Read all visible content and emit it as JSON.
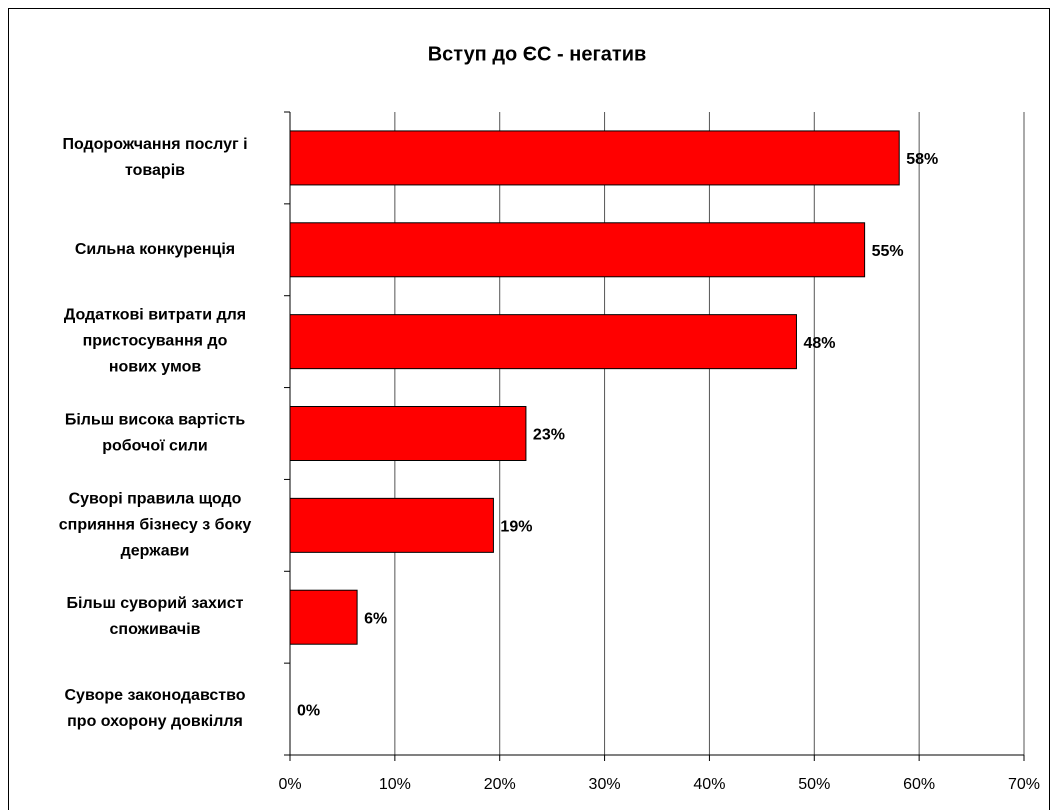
{
  "chart_data": {
    "type": "hbar",
    "title": "Вступ до ЄС - негатив",
    "categories": [
      [
        "Подорожчання послуг і",
        "товарів"
      ],
      [
        "Сильна конкуренція"
      ],
      [
        "Додаткові витрати для",
        "пристосування до",
        "нових умов"
      ],
      [
        "Більш висока вартість",
        "робочої сили"
      ],
      [
        "Суворі правила щодо",
        "сприяння бізнесу з боку",
        "держави"
      ],
      [
        "Більш суворий захист",
        "споживачів"
      ],
      [
        "Суворе законодавство",
        "про охорону довкілля"
      ]
    ],
    "values": [
      58.1,
      54.8,
      48.3,
      22.5,
      19.4,
      6.4,
      0
    ],
    "value_labels": [
      "58%",
      "55%",
      "48%",
      "23%",
      "19%",
      "6%",
      "0%"
    ],
    "color": "#ff0000",
    "xlim": [
      0,
      70
    ],
    "xticks": [
      {
        "value": 0,
        "label": "0%"
      },
      {
        "value": 10,
        "label": "10%"
      },
      {
        "value": 20,
        "label": "20%"
      },
      {
        "value": 30,
        "label": "30%"
      },
      {
        "value": 40,
        "label": "40%"
      },
      {
        "value": 50,
        "label": "50%"
      },
      {
        "value": 60,
        "label": "60%"
      },
      {
        "value": 70,
        "label": "70%"
      }
    ],
    "grid": true
  }
}
